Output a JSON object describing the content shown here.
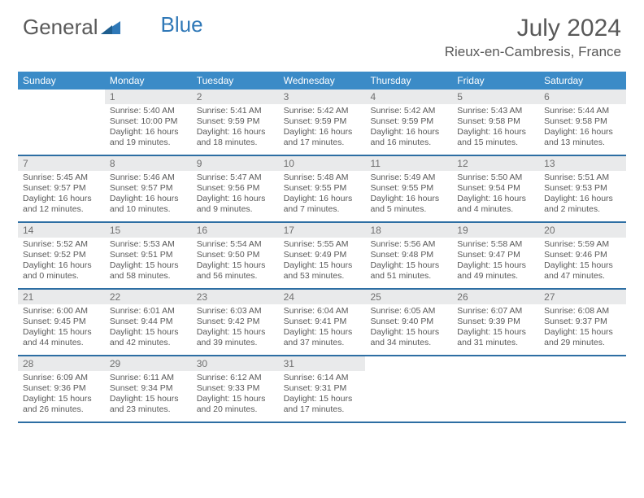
{
  "logo": {
    "text1": "General",
    "text2": "Blue"
  },
  "title": "July 2024",
  "location": "Rieux-en-Cambresis, France",
  "colors": {
    "header_bg": "#3b8bc7",
    "header_text": "#ffffff",
    "week_border": "#2d6ea3",
    "daynum_bg": "#e9eaeb",
    "body_text": "#595959",
    "logo_blue": "#2f78b7",
    "page_bg": "#ffffff"
  },
  "typography": {
    "title_fontsize": 30,
    "location_fontsize": 17,
    "dow_fontsize": 12,
    "daynum_fontsize": 12,
    "cell_fontsize": 10.5
  },
  "calendar": {
    "type": "table",
    "month_start_weekday": 1,
    "days_in_month": 31,
    "dow": [
      "Sunday",
      "Monday",
      "Tuesday",
      "Wednesday",
      "Thursday",
      "Friday",
      "Saturday"
    ],
    "days": [
      {
        "n": 1,
        "sr": "5:40 AM",
        "ss": "10:00 PM",
        "dl": "16 hours and 19 minutes."
      },
      {
        "n": 2,
        "sr": "5:41 AM",
        "ss": "9:59 PM",
        "dl": "16 hours and 18 minutes."
      },
      {
        "n": 3,
        "sr": "5:42 AM",
        "ss": "9:59 PM",
        "dl": "16 hours and 17 minutes."
      },
      {
        "n": 4,
        "sr": "5:42 AM",
        "ss": "9:59 PM",
        "dl": "16 hours and 16 minutes."
      },
      {
        "n": 5,
        "sr": "5:43 AM",
        "ss": "9:58 PM",
        "dl": "16 hours and 15 minutes."
      },
      {
        "n": 6,
        "sr": "5:44 AM",
        "ss": "9:58 PM",
        "dl": "16 hours and 13 minutes."
      },
      {
        "n": 7,
        "sr": "5:45 AM",
        "ss": "9:57 PM",
        "dl": "16 hours and 12 minutes."
      },
      {
        "n": 8,
        "sr": "5:46 AM",
        "ss": "9:57 PM",
        "dl": "16 hours and 10 minutes."
      },
      {
        "n": 9,
        "sr": "5:47 AM",
        "ss": "9:56 PM",
        "dl": "16 hours and 9 minutes."
      },
      {
        "n": 10,
        "sr": "5:48 AM",
        "ss": "9:55 PM",
        "dl": "16 hours and 7 minutes."
      },
      {
        "n": 11,
        "sr": "5:49 AM",
        "ss": "9:55 PM",
        "dl": "16 hours and 5 minutes."
      },
      {
        "n": 12,
        "sr": "5:50 AM",
        "ss": "9:54 PM",
        "dl": "16 hours and 4 minutes."
      },
      {
        "n": 13,
        "sr": "5:51 AM",
        "ss": "9:53 PM",
        "dl": "16 hours and 2 minutes."
      },
      {
        "n": 14,
        "sr": "5:52 AM",
        "ss": "9:52 PM",
        "dl": "16 hours and 0 minutes."
      },
      {
        "n": 15,
        "sr": "5:53 AM",
        "ss": "9:51 PM",
        "dl": "15 hours and 58 minutes."
      },
      {
        "n": 16,
        "sr": "5:54 AM",
        "ss": "9:50 PM",
        "dl": "15 hours and 56 minutes."
      },
      {
        "n": 17,
        "sr": "5:55 AM",
        "ss": "9:49 PM",
        "dl": "15 hours and 53 minutes."
      },
      {
        "n": 18,
        "sr": "5:56 AM",
        "ss": "9:48 PM",
        "dl": "15 hours and 51 minutes."
      },
      {
        "n": 19,
        "sr": "5:58 AM",
        "ss": "9:47 PM",
        "dl": "15 hours and 49 minutes."
      },
      {
        "n": 20,
        "sr": "5:59 AM",
        "ss": "9:46 PM",
        "dl": "15 hours and 47 minutes."
      },
      {
        "n": 21,
        "sr": "6:00 AM",
        "ss": "9:45 PM",
        "dl": "15 hours and 44 minutes."
      },
      {
        "n": 22,
        "sr": "6:01 AM",
        "ss": "9:44 PM",
        "dl": "15 hours and 42 minutes."
      },
      {
        "n": 23,
        "sr": "6:03 AM",
        "ss": "9:42 PM",
        "dl": "15 hours and 39 minutes."
      },
      {
        "n": 24,
        "sr": "6:04 AM",
        "ss": "9:41 PM",
        "dl": "15 hours and 37 minutes."
      },
      {
        "n": 25,
        "sr": "6:05 AM",
        "ss": "9:40 PM",
        "dl": "15 hours and 34 minutes."
      },
      {
        "n": 26,
        "sr": "6:07 AM",
        "ss": "9:39 PM",
        "dl": "15 hours and 31 minutes."
      },
      {
        "n": 27,
        "sr": "6:08 AM",
        "ss": "9:37 PM",
        "dl": "15 hours and 29 minutes."
      },
      {
        "n": 28,
        "sr": "6:09 AM",
        "ss": "9:36 PM",
        "dl": "15 hours and 26 minutes."
      },
      {
        "n": 29,
        "sr": "6:11 AM",
        "ss": "9:34 PM",
        "dl": "15 hours and 23 minutes."
      },
      {
        "n": 30,
        "sr": "6:12 AM",
        "ss": "9:33 PM",
        "dl": "15 hours and 20 minutes."
      },
      {
        "n": 31,
        "sr": "6:14 AM",
        "ss": "9:31 PM",
        "dl": "15 hours and 17 minutes."
      }
    ],
    "labels": {
      "sunrise_prefix": "Sunrise: ",
      "sunset_prefix": "Sunset: ",
      "daylight_prefix": "Daylight: "
    }
  }
}
